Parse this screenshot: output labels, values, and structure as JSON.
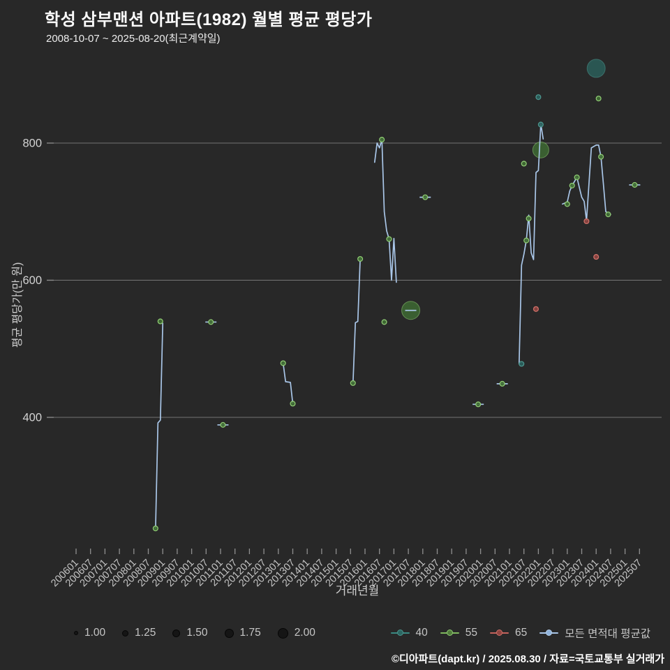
{
  "title": "학성 삼부맨션 아파트(1982) 월별 평균 평당가",
  "subtitle": "2008-10-07 ~ 2025-08-20(최근계약일)",
  "footer": "©디아파트(dapt.kr) / 2025.08.30 / 자료=국토교통부 실거래가",
  "colors": {
    "background": "#282828",
    "grid": "#757575",
    "tick": "#8f8f8f",
    "tick_label": "#c4c4c4",
    "avg_line": "#a9c6e8",
    "series_40": "#3a8a83",
    "series_55": "#7fb95e",
    "series_65": "#c4625c"
  },
  "legend": {
    "sizes": [
      {
        "label": "1.00"
      },
      {
        "label": "1.25"
      },
      {
        "label": "1.50"
      },
      {
        "label": "1.75"
      },
      {
        "label": "2.00"
      }
    ],
    "series": [
      {
        "label": "40"
      },
      {
        "label": "55"
      },
      {
        "label": "65"
      },
      {
        "label": "모든 면적대 평균값"
      }
    ]
  },
  "chart_data": {
    "type": "line+scatter",
    "xlabel": "거래년월",
    "ylabel": "평균 평당가(만 원)",
    "grid": true,
    "legend_position": "bottom",
    "y_ticks": [
      400,
      600,
      800
    ],
    "ylim": [
      200,
      930
    ],
    "x_ticks": [
      "200601",
      "200607",
      "200701",
      "200707",
      "200801",
      "200807",
      "200901",
      "200907",
      "201001",
      "201007",
      "201101",
      "201107",
      "201201",
      "201207",
      "201301",
      "201307",
      "201401",
      "201407",
      "201501",
      "201507",
      "201601",
      "201607",
      "201701",
      "201707",
      "201801",
      "201807",
      "201901",
      "201907",
      "202001",
      "202007",
      "202101",
      "202107",
      "202201",
      "202207",
      "202301",
      "202307",
      "202401",
      "202407",
      "202501",
      "202507"
    ],
    "series": [
      {
        "name": "40",
        "type": "scatter",
        "stroke": "#4c968e",
        "fill": "#2a615d",
        "points": [
          {
            "month": "202106",
            "value": 478,
            "size": 1.0
          },
          {
            "month": "202201",
            "value": 867,
            "size": 1.0
          },
          {
            "month": "202202",
            "value": 827,
            "size": 1.0
          },
          {
            "month": "202401",
            "value": 909,
            "size": 2.0
          }
        ]
      },
      {
        "name": "55",
        "type": "scatter",
        "stroke": "#8ec973",
        "fill": "#3f6d33",
        "points": [
          {
            "month": "200810",
            "value": 238,
            "size": 1.0
          },
          {
            "month": "200812",
            "value": 540,
            "size": 1.0
          },
          {
            "month": "201009",
            "value": 539,
            "size": 1.0
          },
          {
            "month": "201102",
            "value": 389,
            "size": 1.0
          },
          {
            "month": "201303",
            "value": 479,
            "size": 1.0
          },
          {
            "month": "201307",
            "value": 420,
            "size": 1.0
          },
          {
            "month": "201508",
            "value": 450,
            "size": 1.0
          },
          {
            "month": "201511",
            "value": 631,
            "size": 1.0
          },
          {
            "month": "201608",
            "value": 805,
            "size": 1.0
          },
          {
            "month": "201609",
            "value": 539,
            "size": 1.0
          },
          {
            "month": "201611",
            "value": 660,
            "size": 1.0
          },
          {
            "month": "201708",
            "value": 556,
            "size": 2.0
          },
          {
            "month": "201802",
            "value": 721,
            "size": 1.0
          },
          {
            "month": "201912",
            "value": 419,
            "size": 1.0
          },
          {
            "month": "202010",
            "value": 449,
            "size": 1.0
          },
          {
            "month": "202107",
            "value": 770,
            "size": 1.0
          },
          {
            "month": "202108",
            "value": 658,
            "size": 1.0
          },
          {
            "month": "202109",
            "value": 690,
            "size": 1.0
          },
          {
            "month": "202202",
            "value": 790,
            "size": 1.75
          },
          {
            "month": "202301",
            "value": 711,
            "size": 1.0
          },
          {
            "month": "202303",
            "value": 738,
            "size": 1.0
          },
          {
            "month": "202305",
            "value": 750,
            "size": 1.0
          },
          {
            "month": "202402",
            "value": 865,
            "size": 1.0
          },
          {
            "month": "202403",
            "value": 780,
            "size": 1.0
          },
          {
            "month": "202406",
            "value": 696,
            "size": 1.0
          },
          {
            "month": "202505",
            "value": 739,
            "size": 1.0
          }
        ]
      },
      {
        "name": "65",
        "type": "scatter",
        "stroke": "#cf7169",
        "fill": "#8f4440",
        "points": [
          {
            "month": "202112",
            "value": 558,
            "size": 1.0
          },
          {
            "month": "202309",
            "value": 686,
            "size": 1.0
          },
          {
            "month": "202401",
            "value": 634,
            "size": 1.0
          }
        ]
      },
      {
        "name": "모든 면적대 평균값",
        "type": "line",
        "color": "#a9c6e8",
        "segments": [
          [
            [
              "200810",
              238
            ],
            [
              "200811",
              392
            ],
            [
              "200812",
              396
            ],
            [
              "200901",
              537
            ]
          ],
          [
            [
              "201303",
              479
            ],
            [
              "201304",
              452
            ],
            [
              "201306",
              451
            ],
            [
              "201307",
              420
            ]
          ],
          [
            [
              "201508",
              450
            ],
            [
              "201509",
              538
            ],
            [
              "201510",
              540
            ],
            [
              "201511",
              631
            ]
          ],
          [
            [
              "201605",
              772
            ],
            [
              "201606",
              800
            ],
            [
              "201607",
              793
            ],
            [
              "201608",
              805
            ],
            [
              "201609",
              700
            ],
            [
              "201610",
              672
            ],
            [
              "201611",
              660
            ],
            [
              "201612",
              600
            ],
            [
              "201701",
              661
            ],
            [
              "201702",
              597
            ]
          ],
          [
            [
              "202105",
              478
            ],
            [
              "202106",
              622
            ],
            [
              "202107",
              638
            ],
            [
              "202108",
              658
            ],
            [
              "202109",
              695
            ],
            [
              "202110",
              640
            ],
            [
              "202111",
              630
            ],
            [
              "202112",
              757
            ],
            [
              "202201",
              760
            ],
            [
              "202202",
              828
            ],
            [
              "202203",
              806
            ]
          ],
          [
            [
              "202211",
              711
            ],
            [
              "202301",
              714
            ],
            [
              "202302",
              730
            ],
            [
              "202303",
              738
            ],
            [
              "202305",
              750
            ],
            [
              "202307",
              721
            ],
            [
              "202308",
              715
            ],
            [
              "202309",
              687
            ],
            [
              "202311",
              793
            ],
            [
              "202401",
              797
            ],
            [
              "202402",
              797
            ],
            [
              "202403",
              780
            ],
            [
              "202404",
              740
            ],
            [
              "202405",
              700
            ],
            [
              "202407",
              696
            ]
          ]
        ],
        "single_points": [
          [
            "201009",
            539
          ],
          [
            "201102",
            389
          ],
          [
            "201708",
            556
          ],
          [
            "201802",
            721
          ],
          [
            "201912",
            419
          ],
          [
            "202010",
            449
          ],
          [
            "202505",
            739
          ]
        ]
      }
    ]
  }
}
